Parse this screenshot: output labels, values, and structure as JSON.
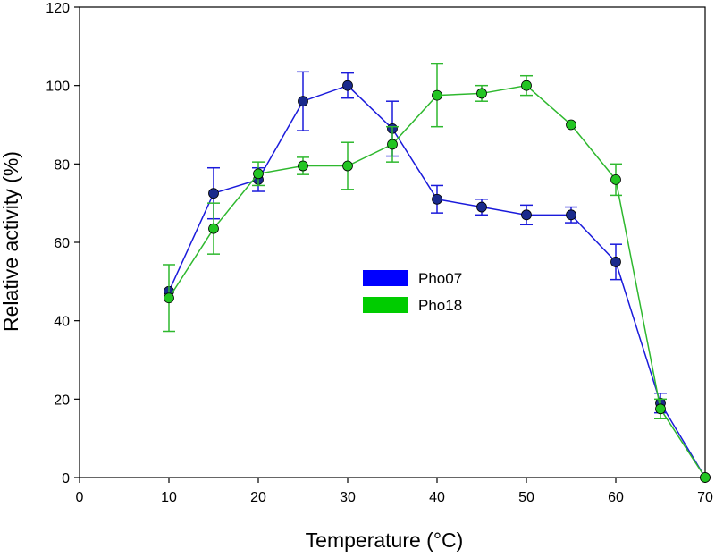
{
  "chart_data": {
    "type": "line",
    "xlabel": "Temperature (°C)",
    "ylabel": "Relative activity (%)",
    "xlim": [
      0,
      70
    ],
    "ylim": [
      0,
      120
    ],
    "xticks": [
      0,
      10,
      20,
      30,
      40,
      50,
      60,
      70
    ],
    "yticks": [
      0,
      20,
      40,
      60,
      80,
      100,
      120
    ],
    "grid": false,
    "legend_position": "center",
    "x": [
      10,
      15,
      20,
      25,
      30,
      35,
      40,
      45,
      50,
      55,
      60,
      65,
      70
    ],
    "series": [
      {
        "name": "Pho07",
        "line_color": "#1a1adb",
        "marker_color": "#1a2a8c",
        "legend_color": "#0000ff",
        "values": [
          47.5,
          72.5,
          76,
          96,
          100,
          89,
          71,
          69,
          67,
          67,
          55,
          19,
          0
        ],
        "errors": [
          0,
          6.5,
          3,
          7.5,
          3.2,
          7,
          3.5,
          2,
          2.5,
          2,
          4.5,
          2.5,
          0
        ]
      },
      {
        "name": "Pho18",
        "line_color": "#2eb82e",
        "marker_color": "#22c522",
        "legend_color": "#00cc00",
        "values": [
          45.8,
          63.5,
          77.5,
          79.5,
          79.5,
          85,
          97.5,
          98,
          100,
          90,
          76,
          17.5,
          0
        ],
        "errors": [
          8.5,
          6.5,
          3,
          2.2,
          6,
          4.5,
          8,
          2,
          2.5,
          0,
          4,
          2.5,
          0
        ]
      }
    ]
  }
}
